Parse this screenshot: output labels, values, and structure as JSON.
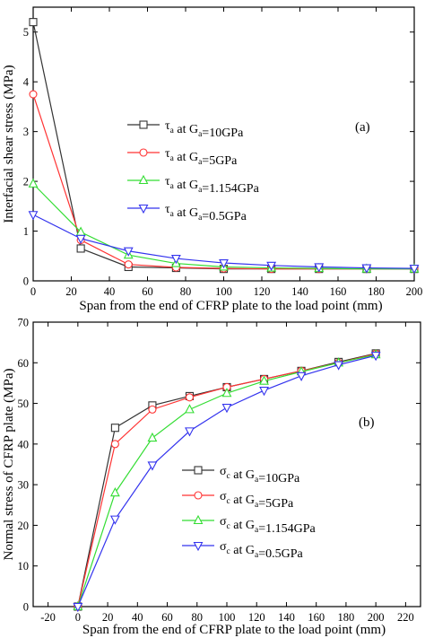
{
  "chart_data": [
    {
      "type": "line",
      "panel_label": "(a)",
      "xlabel": "Span from the end of CFRP plate to the load point (mm)",
      "ylabel": "Interfacial shear stress (MPa)",
      "xlim": [
        0,
        200
      ],
      "ylim": [
        0,
        5.5
      ],
      "xticks": [
        0,
        20,
        40,
        60,
        80,
        100,
        120,
        140,
        160,
        180,
        200
      ],
      "yticks": [
        0,
        1,
        2,
        3,
        4,
        5
      ],
      "x": [
        0,
        25,
        50,
        75,
        100,
        125,
        150,
        175,
        200
      ],
      "legend_position": "center-left",
      "series": [
        {
          "name": "τa at Ga=10GPa",
          "sym": "τ",
          "sub1": "a",
          "mid": " at G",
          "sub2": "a",
          "tail": "=10GPa",
          "color": "#333333",
          "marker": "square",
          "values": [
            5.2,
            0.65,
            0.28,
            0.26,
            0.24,
            0.24,
            0.24,
            0.24,
            0.24
          ]
        },
        {
          "name": "τa at Ga=5GPa",
          "sym": "τ",
          "sub1": "a",
          "mid": " at G",
          "sub2": "a",
          "tail": "=5GPa",
          "color": "#ff3333",
          "marker": "circle",
          "values": [
            3.75,
            0.82,
            0.33,
            0.27,
            0.25,
            0.24,
            0.24,
            0.24,
            0.24
          ]
        },
        {
          "name": "τa at Ga=1.154GPa",
          "sym": "τ",
          "sub1": "a",
          "mid": " at G",
          "sub2": "a",
          "tail": "=1.154GPa",
          "color": "#33dd33",
          "marker": "triangle-up",
          "values": [
            1.95,
            0.98,
            0.52,
            0.35,
            0.28,
            0.26,
            0.25,
            0.24,
            0.24
          ]
        },
        {
          "name": "τa at Ga=0.5GPa",
          "sym": "τ",
          "sub1": "a",
          "mid": " at G",
          "sub2": "a",
          "tail": "=0.5GPa",
          "color": "#3333ee",
          "marker": "triangle-down",
          "values": [
            1.33,
            0.85,
            0.6,
            0.45,
            0.36,
            0.31,
            0.28,
            0.26,
            0.25
          ]
        }
      ]
    },
    {
      "type": "line",
      "panel_label": "(b)",
      "xlabel": "Span from the end of CFRP plate to the load point (mm)",
      "ylabel": "Normal stress of CFRP plate (MPa)",
      "xlim": [
        -30,
        230
      ],
      "ylim": [
        0,
        70
      ],
      "xticks": [
        -20,
        0,
        20,
        40,
        60,
        80,
        100,
        120,
        140,
        160,
        180,
        200,
        220
      ],
      "yticks": [
        0,
        10,
        20,
        30,
        40,
        50,
        60,
        70
      ],
      "x": [
        0,
        25,
        50,
        75,
        100,
        125,
        150,
        175,
        200
      ],
      "legend_position": "bottom-right",
      "series": [
        {
          "name": "σc at Ga=10GPa",
          "sym": "σ",
          "sub1": "c",
          "mid": " at G",
          "sub2": "a",
          "tail": "=10GPa",
          "color": "#333333",
          "marker": "square",
          "values": [
            0,
            44,
            49.5,
            51.8,
            54,
            56,
            58,
            60.2,
            62.3
          ]
        },
        {
          "name": "σc at Ga=5GPa",
          "sym": "σ",
          "sub1": "c",
          "mid": " at G",
          "sub2": "a",
          "tail": "=5GPa",
          "color": "#ff3333",
          "marker": "circle",
          "values": [
            0,
            40,
            48.5,
            51.5,
            54,
            56,
            58,
            60,
            62.2
          ]
        },
        {
          "name": "σc at Ga=1.154GPa",
          "sym": "σ",
          "sub1": "c",
          "mid": " at G",
          "sub2": "a",
          "tail": "=1.154GPa",
          "color": "#33dd33",
          "marker": "triangle-up",
          "values": [
            0,
            28,
            41.5,
            48.5,
            52.5,
            55.5,
            57.8,
            60,
            62
          ]
        },
        {
          "name": "σc at Ga=0.5GPa",
          "sym": "σ",
          "sub1": "c",
          "mid": " at G",
          "sub2": "a",
          "tail": "=0.5GPa",
          "color": "#3333ee",
          "marker": "triangle-down",
          "values": [
            0,
            21.5,
            34.8,
            43.2,
            49,
            53.2,
            56.8,
            59.5,
            61.8
          ]
        }
      ]
    }
  ]
}
